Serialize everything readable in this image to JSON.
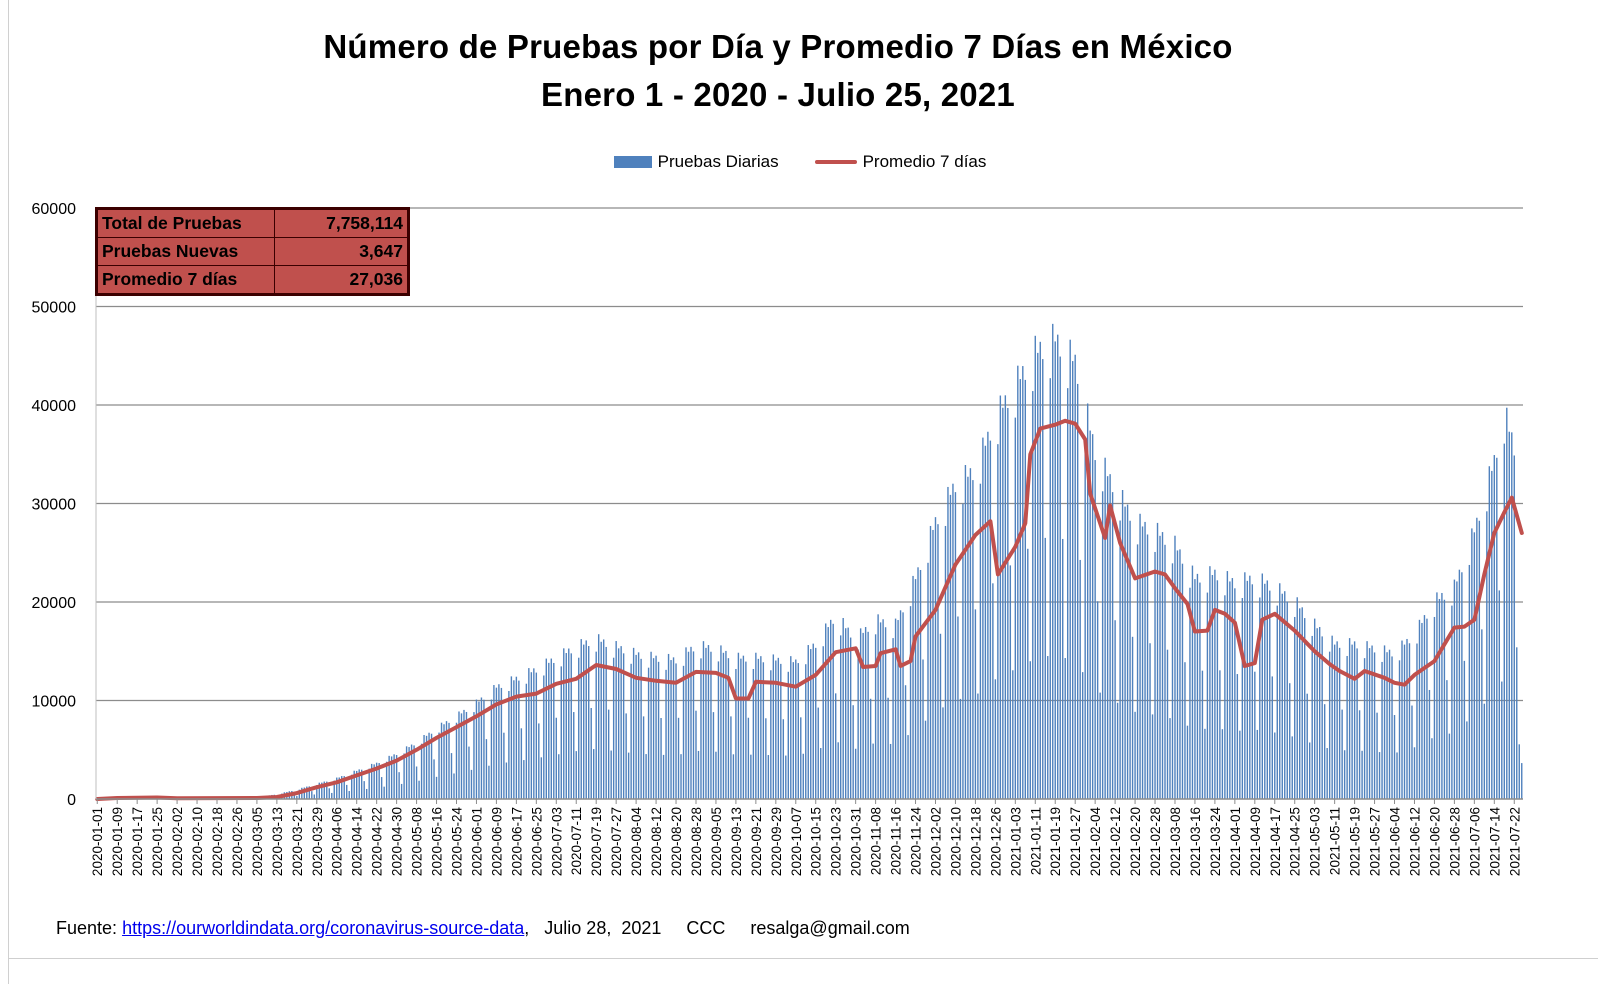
{
  "chart_data": {
    "type": "bar",
    "title": "Número de Pruebas por Día  y Promedio 7 Días en México",
    "subtitle": "Enero 1 - 2020 - Julio 25, 2021",
    "ylim": [
      0,
      60000
    ],
    "y_ticks": [
      0,
      10000,
      20000,
      30000,
      40000,
      50000,
      60000
    ],
    "x_start": "2020-01-01",
    "x_end": "2021-07-25",
    "x_tick_labels": [
      "2020-01-01",
      "2020-01-09",
      "2020-01-17",
      "2020-01-25",
      "2020-02-02",
      "2020-02-10",
      "2020-02-18",
      "2020-02-26",
      "2020-03-05",
      "2020-03-13",
      "2020-03-21",
      "2020-03-29",
      "2020-04-06",
      "2020-04-14",
      "2020-04-22",
      "2020-04-30",
      "2020-05-08",
      "2020-05-16",
      "2020-05-24",
      "2020-06-01",
      "2020-06-09",
      "2020-06-17",
      "2020-06-25",
      "2020-07-03",
      "2020-07-11",
      "2020-07-19",
      "2020-07-27",
      "2020-08-04",
      "2020-08-12",
      "2020-08-20",
      "2020-08-28",
      "2020-09-05",
      "2020-09-13",
      "2020-09-21",
      "2020-09-29",
      "2020-10-07",
      "2020-10-15",
      "2020-10-23",
      "2020-10-31",
      "2020-11-08",
      "2020-11-16",
      "2020-11-24",
      "2020-12-02",
      "2020-12-10",
      "2020-12-18",
      "2020-12-26",
      "2021-01-03",
      "2021-01-11",
      "2021-01-19",
      "2021-01-27",
      "2021-02-04",
      "2021-02-12",
      "2021-02-20",
      "2021-02-28",
      "2021-03-08",
      "2021-03-16",
      "2021-03-24",
      "2021-04-01",
      "2021-04-09",
      "2021-04-17",
      "2021-04-25",
      "2021-05-03",
      "2021-05-11",
      "2021-05-19",
      "2021-05-27",
      "2021-06-04",
      "2021-06-12",
      "2021-06-20",
      "2021-06-28",
      "2021-07-06",
      "2021-07-14",
      "2021-07-22"
    ],
    "legend_position": "top-center",
    "grid": true,
    "series": [
      {
        "name": "Pruebas Diarias",
        "kind": "bar",
        "color": "#4f81bd",
        "daily_envelope_points": [
          [
            "2020-01-01",
            0
          ],
          [
            "2020-01-09",
            100
          ],
          [
            "2020-02-01",
            150
          ],
          [
            "2020-03-05",
            200
          ],
          [
            "2020-03-13",
            500
          ],
          [
            "2020-03-21",
            1000
          ],
          [
            "2020-03-29",
            1600
          ],
          [
            "2020-04-06",
            2200
          ],
          [
            "2020-04-14",
            3000
          ],
          [
            "2020-04-22",
            3800
          ],
          [
            "2020-04-30",
            4800
          ],
          [
            "2020-05-08",
            6000
          ],
          [
            "2020-05-16",
            7500
          ],
          [
            "2020-05-24",
            8800
          ],
          [
            "2020-06-01",
            10200
          ],
          [
            "2020-06-09",
            11900
          ],
          [
            "2020-06-17",
            12800
          ],
          [
            "2020-06-25",
            13800
          ],
          [
            "2020-07-03",
            15000
          ],
          [
            "2020-07-11",
            16200
          ],
          [
            "2020-07-19",
            17000
          ],
          [
            "2020-07-27",
            16200
          ],
          [
            "2020-08-04",
            15400
          ],
          [
            "2020-08-12",
            15000
          ],
          [
            "2020-08-20",
            14800
          ],
          [
            "2020-08-28",
            16300
          ],
          [
            "2020-09-05",
            16000
          ],
          [
            "2020-09-13",
            15000
          ],
          [
            "2020-09-21",
            15000
          ],
          [
            "2020-09-29",
            14800
          ],
          [
            "2020-10-07",
            14600
          ],
          [
            "2020-10-15",
            16500
          ],
          [
            "2020-10-23",
            19500
          ],
          [
            "2020-10-31",
            17000
          ],
          [
            "2020-11-08",
            19000
          ],
          [
            "2020-11-16",
            18500
          ],
          [
            "2020-11-24",
            23500
          ],
          [
            "2020-12-02",
            29500
          ],
          [
            "2020-12-10",
            33500
          ],
          [
            "2020-12-18",
            35000
          ],
          [
            "2020-12-26",
            40500
          ],
          [
            "2021-01-03",
            44000
          ],
          [
            "2021-01-11",
            47500
          ],
          [
            "2021-01-19",
            48900
          ],
          [
            "2021-01-27",
            46500
          ],
          [
            "2021-02-04",
            37000
          ],
          [
            "2021-02-12",
            33000
          ],
          [
            "2021-02-20",
            29500
          ],
          [
            "2021-02-28",
            28500
          ],
          [
            "2021-03-08",
            27000
          ],
          [
            "2021-03-16",
            23500
          ],
          [
            "2021-03-24",
            24000
          ],
          [
            "2021-04-01",
            23000
          ],
          [
            "2021-04-09",
            23500
          ],
          [
            "2021-04-17",
            22500
          ],
          [
            "2021-04-25",
            21000
          ],
          [
            "2021-05-03",
            18500
          ],
          [
            "2021-05-11",
            16500
          ],
          [
            "2021-05-19",
            16500
          ],
          [
            "2021-05-27",
            16000
          ],
          [
            "2021-06-04",
            15500
          ],
          [
            "2021-06-12",
            17500
          ],
          [
            "2021-06-20",
            21000
          ],
          [
            "2021-06-28",
            22500
          ],
          [
            "2021-07-06",
            28500
          ],
          [
            "2021-07-14",
            36000
          ],
          [
            "2021-07-18",
            41000
          ],
          [
            "2021-07-22",
            37500
          ],
          [
            "2021-07-25",
            9000
          ]
        ]
      },
      {
        "name": "Promedio 7 días",
        "kind": "line",
        "color": "#c0504d",
        "points": [
          [
            "2020-01-01",
            0
          ],
          [
            "2020-01-09",
            100
          ],
          [
            "2020-01-25",
            150
          ],
          [
            "2020-02-02",
            80
          ],
          [
            "2020-03-05",
            100
          ],
          [
            "2020-03-13",
            200
          ],
          [
            "2020-03-21",
            600
          ],
          [
            "2020-03-29",
            1200
          ],
          [
            "2020-04-06",
            1700
          ],
          [
            "2020-04-14",
            2400
          ],
          [
            "2020-04-22",
            3100
          ],
          [
            "2020-04-30",
            3900
          ],
          [
            "2020-05-08",
            5000
          ],
          [
            "2020-05-16",
            6200
          ],
          [
            "2020-05-24",
            7300
          ],
          [
            "2020-06-01",
            8400
          ],
          [
            "2020-06-09",
            9600
          ],
          [
            "2020-06-17",
            10400
          ],
          [
            "2020-06-25",
            10700
          ],
          [
            "2020-07-03",
            11700
          ],
          [
            "2020-07-11",
            12200
          ],
          [
            "2020-07-19",
            13600
          ],
          [
            "2020-07-27",
            13200
          ],
          [
            "2020-08-04",
            12300
          ],
          [
            "2020-08-12",
            12000
          ],
          [
            "2020-08-20",
            11800
          ],
          [
            "2020-08-28",
            12900
          ],
          [
            "2020-09-05",
            12800
          ],
          [
            "2020-09-10",
            12300
          ],
          [
            "2020-09-13",
            10200
          ],
          [
            "2020-09-18",
            10200
          ],
          [
            "2020-09-21",
            11900
          ],
          [
            "2020-09-29",
            11800
          ],
          [
            "2020-10-07",
            11400
          ],
          [
            "2020-10-15",
            12600
          ],
          [
            "2020-10-23",
            14900
          ],
          [
            "2020-10-31",
            15300
          ],
          [
            "2020-11-03",
            13400
          ],
          [
            "2020-11-08",
            13500
          ],
          [
            "2020-11-10",
            14800
          ],
          [
            "2020-11-16",
            15200
          ],
          [
            "2020-11-18",
            13500
          ],
          [
            "2020-11-22",
            14000
          ],
          [
            "2020-11-24",
            16500
          ],
          [
            "2020-12-02",
            19200
          ],
          [
            "2020-12-10",
            23800
          ],
          [
            "2020-12-18",
            26800
          ],
          [
            "2020-12-24",
            28200
          ],
          [
            "2020-12-27",
            22800
          ],
          [
            "2021-01-03",
            25600
          ],
          [
            "2021-01-07",
            28000
          ],
          [
            "2021-01-09",
            35000
          ],
          [
            "2021-01-13",
            37600
          ],
          [
            "2021-01-19",
            38000
          ],
          [
            "2021-01-23",
            38400
          ],
          [
            "2021-01-27",
            38100
          ],
          [
            "2021-01-31",
            36500
          ],
          [
            "2021-02-02",
            31000
          ],
          [
            "2021-02-08",
            26500
          ],
          [
            "2021-02-10",
            29800
          ],
          [
            "2021-02-14",
            26000
          ],
          [
            "2021-02-20",
            22400
          ],
          [
            "2021-02-28",
            23100
          ],
          [
            "2021-03-04",
            22800
          ],
          [
            "2021-03-08",
            21400
          ],
          [
            "2021-03-13",
            19800
          ],
          [
            "2021-03-16",
            17000
          ],
          [
            "2021-03-21",
            17100
          ],
          [
            "2021-03-24",
            19200
          ],
          [
            "2021-03-28",
            18800
          ],
          [
            "2021-04-01",
            17900
          ],
          [
            "2021-04-05",
            13500
          ],
          [
            "2021-04-09",
            13800
          ],
          [
            "2021-04-12",
            18200
          ],
          [
            "2021-04-17",
            18800
          ],
          [
            "2021-04-25",
            17100
          ],
          [
            "2021-05-03",
            15000
          ],
          [
            "2021-05-09",
            13700
          ],
          [
            "2021-05-13",
            13000
          ],
          [
            "2021-05-19",
            12200
          ],
          [
            "2021-05-23",
            13000
          ],
          [
            "2021-05-31",
            12300
          ],
          [
            "2021-06-04",
            11800
          ],
          [
            "2021-06-08",
            11600
          ],
          [
            "2021-06-12",
            12600
          ],
          [
            "2021-06-20",
            14000
          ],
          [
            "2021-06-28",
            17400
          ],
          [
            "2021-07-02",
            17500
          ],
          [
            "2021-07-06",
            18200
          ],
          [
            "2021-07-10",
            22800
          ],
          [
            "2021-07-14",
            27000
          ],
          [
            "2021-07-18",
            29100
          ],
          [
            "2021-07-21",
            30600
          ],
          [
            "2021-07-25",
            27000
          ]
        ]
      }
    ]
  },
  "stats_table": [
    {
      "label": "Total de Pruebas",
      "value": "7,758,114"
    },
    {
      "label": "Pruebas Nuevas",
      "value": "3,647"
    },
    {
      "label": "Promedio 7 días",
      "value": "27,036"
    }
  ],
  "footer": {
    "prefix": "Fuente:",
    "link": "https://ourworldindata.org/coronavirus-source-data",
    "suffix": ",   Julio 28,  2021     CCC     resalga@gmail.com"
  }
}
